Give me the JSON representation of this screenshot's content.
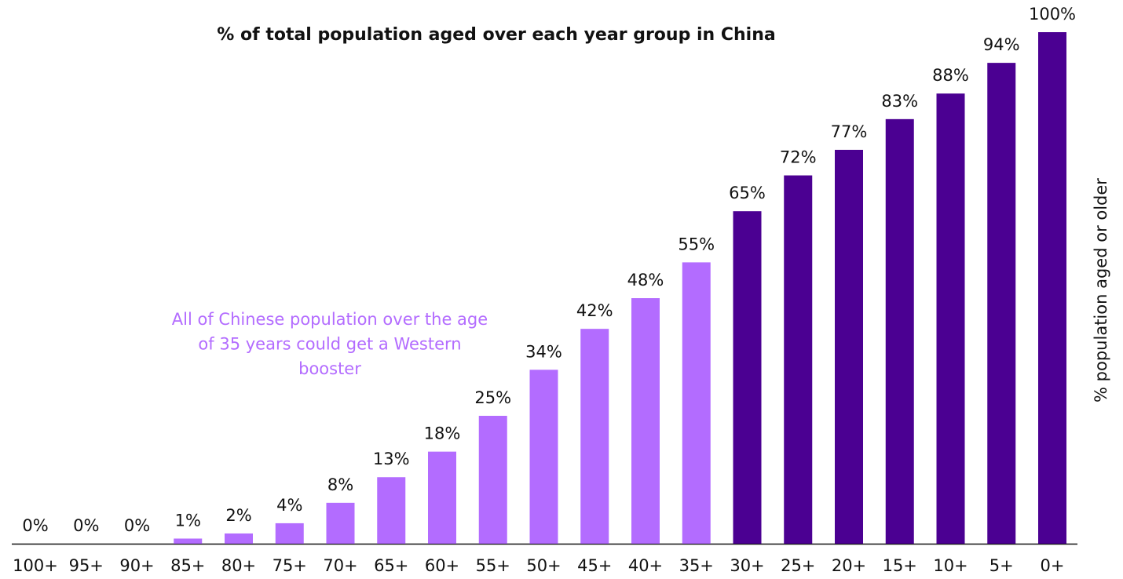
{
  "chart_data": {
    "type": "bar",
    "title": "% of total population aged over each year group in China",
    "y_axis_label": "% population aged or older",
    "annotation": [
      "All of Chinese population over the age",
      "of 35 years could get a Western",
      "booster"
    ],
    "categories": [
      "100+",
      "95+",
      "90+",
      "85+",
      "80+",
      "75+",
      "70+",
      "65+",
      "60+",
      "55+",
      "50+",
      "45+",
      "40+",
      "35+",
      "30+",
      "25+",
      "20+",
      "15+",
      "10+",
      "5+",
      "0+"
    ],
    "values": [
      0,
      0,
      0,
      1,
      2,
      4,
      8,
      13,
      18,
      25,
      34,
      42,
      48,
      55,
      65,
      72,
      77,
      83,
      88,
      94,
      100
    ],
    "value_labels": [
      "0%",
      "0%",
      "0%",
      "1%",
      "2%",
      "4%",
      "8%",
      "13%",
      "18%",
      "25%",
      "34%",
      "42%",
      "48%",
      "55%",
      "65%",
      "72%",
      "77%",
      "83%",
      "88%",
      "94%",
      "100%"
    ],
    "colors": [
      "#b36cff",
      "#b36cff",
      "#b36cff",
      "#b36cff",
      "#b36cff",
      "#b36cff",
      "#b36cff",
      "#b36cff",
      "#b36cff",
      "#b36cff",
      "#b36cff",
      "#b36cff",
      "#b36cff",
      "#b36cff",
      "#4b0092",
      "#4b0092",
      "#4b0092",
      "#4b0092",
      "#4b0092",
      "#4b0092",
      "#4b0092"
    ],
    "annotation_color": "#b36cff",
    "ylim": [
      0,
      100
    ]
  }
}
